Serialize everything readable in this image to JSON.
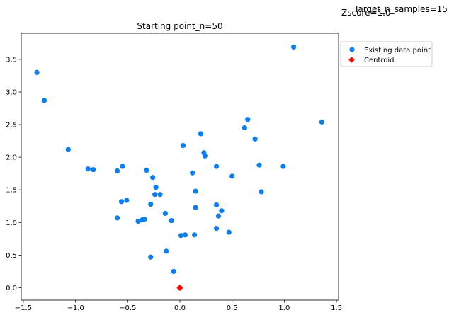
{
  "chart_data": {
    "type": "scatter",
    "title": "Starting point_n=50",
    "annotations": [
      "Target_n_samples=15",
      "Zscore=1.0"
    ],
    "xlabel": "",
    "ylabel": "",
    "xlim": [
      -1.52,
      1.52
    ],
    "ylim": [
      -0.19,
      3.9
    ],
    "xticks": [
      -1.5,
      -1.0,
      -0.5,
      0.0,
      0.5,
      1.0,
      1.5
    ],
    "xtick_labels": [
      "−1.5",
      "−1.0",
      "−0.5",
      "0.0",
      "0.5",
      "1.0",
      "1.5"
    ],
    "yticks": [
      0.0,
      0.5,
      1.0,
      1.5,
      2.0,
      2.5,
      3.0,
      3.5
    ],
    "ytick_labels": [
      "0.0",
      "0.5",
      "1.0",
      "1.5",
      "2.0",
      "2.5",
      "3.0",
      "3.5"
    ],
    "grid": false,
    "legend_position": "outside-top-right",
    "series": [
      {
        "name": "Existing data point",
        "marker": "circle",
        "color": "#0a7ef2",
        "points": [
          [
            -1.37,
            3.3
          ],
          [
            -1.3,
            2.87
          ],
          [
            -1.07,
            2.12
          ],
          [
            -0.88,
            1.82
          ],
          [
            -0.83,
            1.81
          ],
          [
            -0.6,
            1.79
          ],
          [
            -0.6,
            1.07
          ],
          [
            -0.55,
            1.86
          ],
          [
            -0.56,
            1.32
          ],
          [
            -0.51,
            1.34
          ],
          [
            -0.4,
            1.02
          ],
          [
            -0.36,
            1.04
          ],
          [
            -0.34,
            1.05
          ],
          [
            -0.32,
            1.8
          ],
          [
            -0.28,
            1.28
          ],
          [
            -0.26,
            1.69
          ],
          [
            -0.24,
            1.43
          ],
          [
            -0.23,
            1.54
          ],
          [
            -0.19,
            1.43
          ],
          [
            -0.14,
            1.14
          ],
          [
            -0.13,
            0.56
          ],
          [
            -0.28,
            0.47
          ],
          [
            -0.08,
            1.03
          ],
          [
            -0.06,
            0.25
          ],
          [
            0.01,
            0.8
          ],
          [
            0.03,
            2.18
          ],
          [
            0.05,
            0.81
          ],
          [
            0.12,
            1.76
          ],
          [
            0.14,
            0.81
          ],
          [
            0.15,
            1.48
          ],
          [
            0.15,
            1.23
          ],
          [
            0.2,
            2.36
          ],
          [
            0.23,
            2.07
          ],
          [
            0.24,
            2.02
          ],
          [
            0.35,
            1.86
          ],
          [
            0.35,
            1.27
          ],
          [
            0.35,
            0.91
          ],
          [
            0.37,
            1.1
          ],
          [
            0.4,
            1.18
          ],
          [
            0.47,
            0.85
          ],
          [
            0.5,
            1.71
          ],
          [
            0.62,
            2.45
          ],
          [
            0.65,
            2.58
          ],
          [
            0.72,
            2.28
          ],
          [
            0.76,
            1.88
          ],
          [
            0.78,
            1.47
          ],
          [
            0.99,
            1.86
          ],
          [
            1.09,
            3.69
          ],
          [
            1.36,
            2.54
          ]
        ]
      },
      {
        "name": "Centroid",
        "marker": "diamond",
        "color": "#ff0000",
        "points": [
          [
            0.0,
            0.0
          ]
        ]
      }
    ]
  }
}
